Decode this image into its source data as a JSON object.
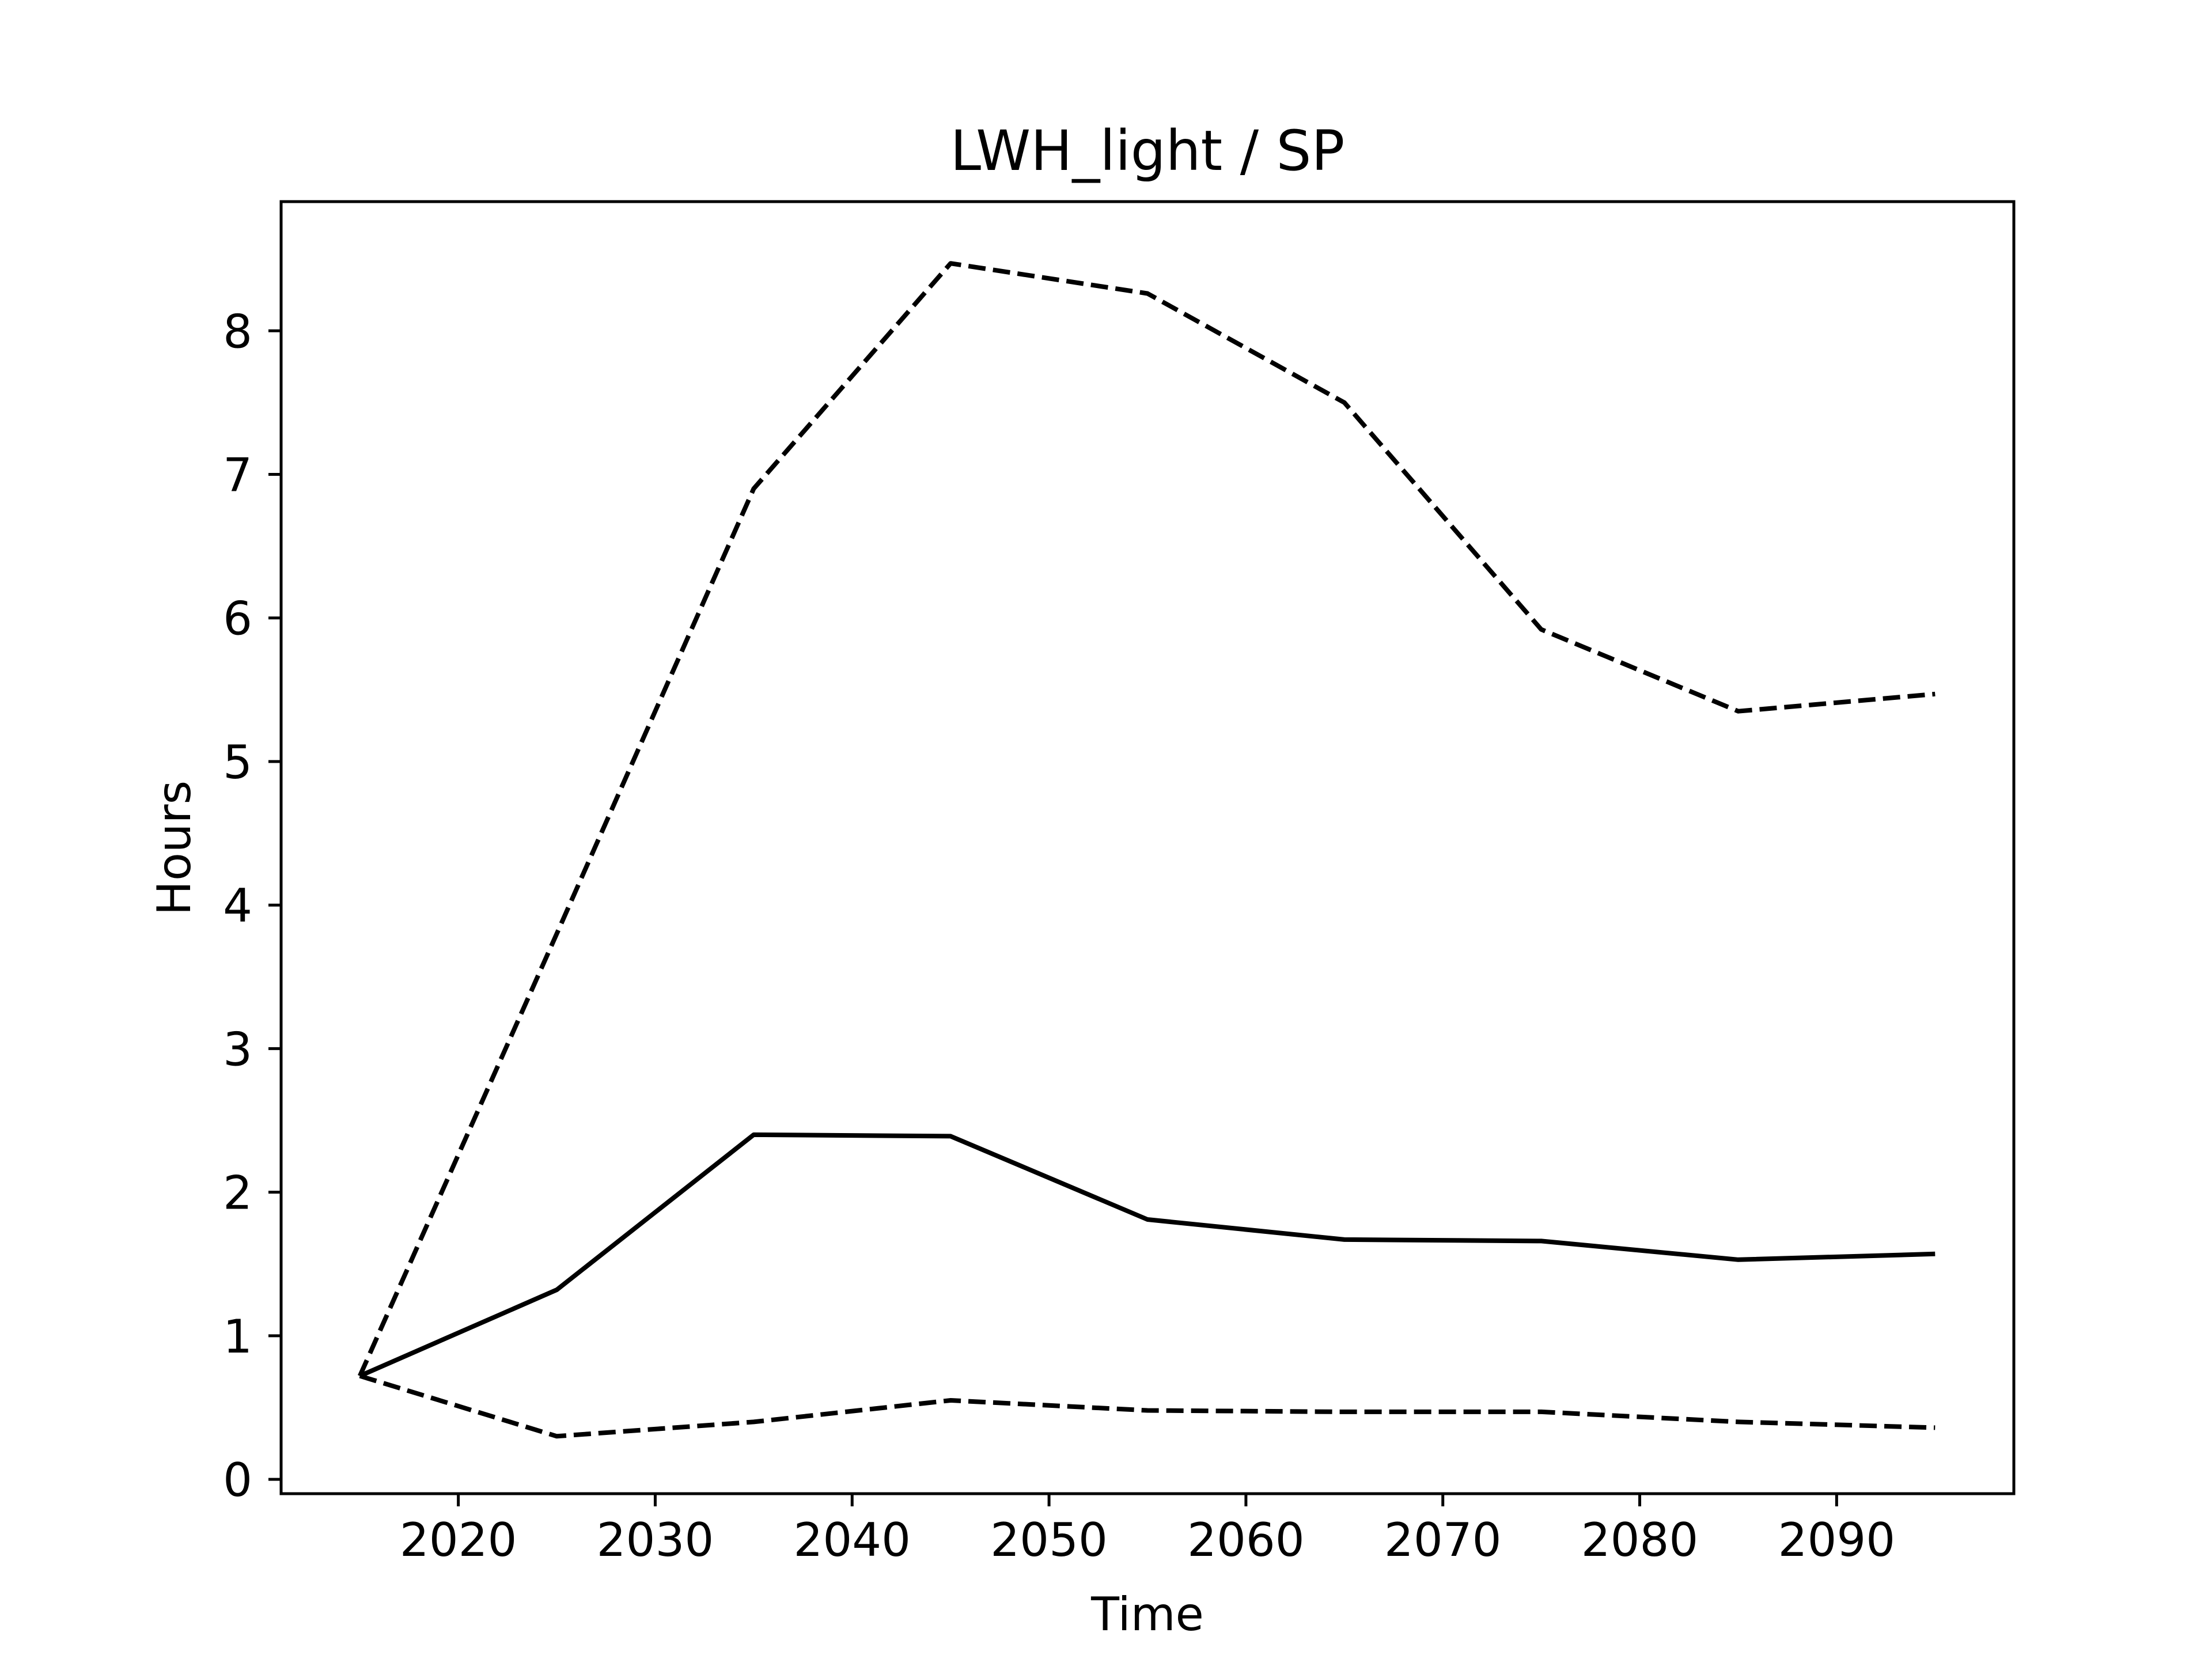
{
  "chart_data": {
    "type": "line",
    "title": "LWH_light / SP",
    "xlabel": "Time",
    "ylabel": "Hours",
    "xlim": [
      2011,
      2099
    ],
    "ylim": [
      -0.1,
      8.9
    ],
    "xticks": [
      2020,
      2030,
      2040,
      2050,
      2060,
      2070,
      2080,
      2090
    ],
    "yticks": [
      0,
      1,
      2,
      3,
      4,
      5,
      6,
      7,
      8
    ],
    "grid": false,
    "legend": "none",
    "x": [
      2015,
      2025,
      2035,
      2045,
      2055,
      2065,
      2075,
      2085,
      2095
    ],
    "series": [
      {
        "style": "solid",
        "color": "#000000",
        "values": [
          0.72,
          1.32,
          2.4,
          2.39,
          1.81,
          1.67,
          1.66,
          1.53,
          1.57
        ]
      },
      {
        "style": "dashed",
        "color": "#000000",
        "values": [
          0.72,
          3.8,
          6.9,
          8.47,
          8.26,
          7.5,
          5.92,
          5.35,
          5.47
        ]
      },
      {
        "style": "dashed",
        "color": "#000000",
        "values": [
          0.72,
          0.3,
          0.4,
          0.55,
          0.48,
          0.47,
          0.47,
          0.4,
          0.36
        ]
      }
    ]
  }
}
